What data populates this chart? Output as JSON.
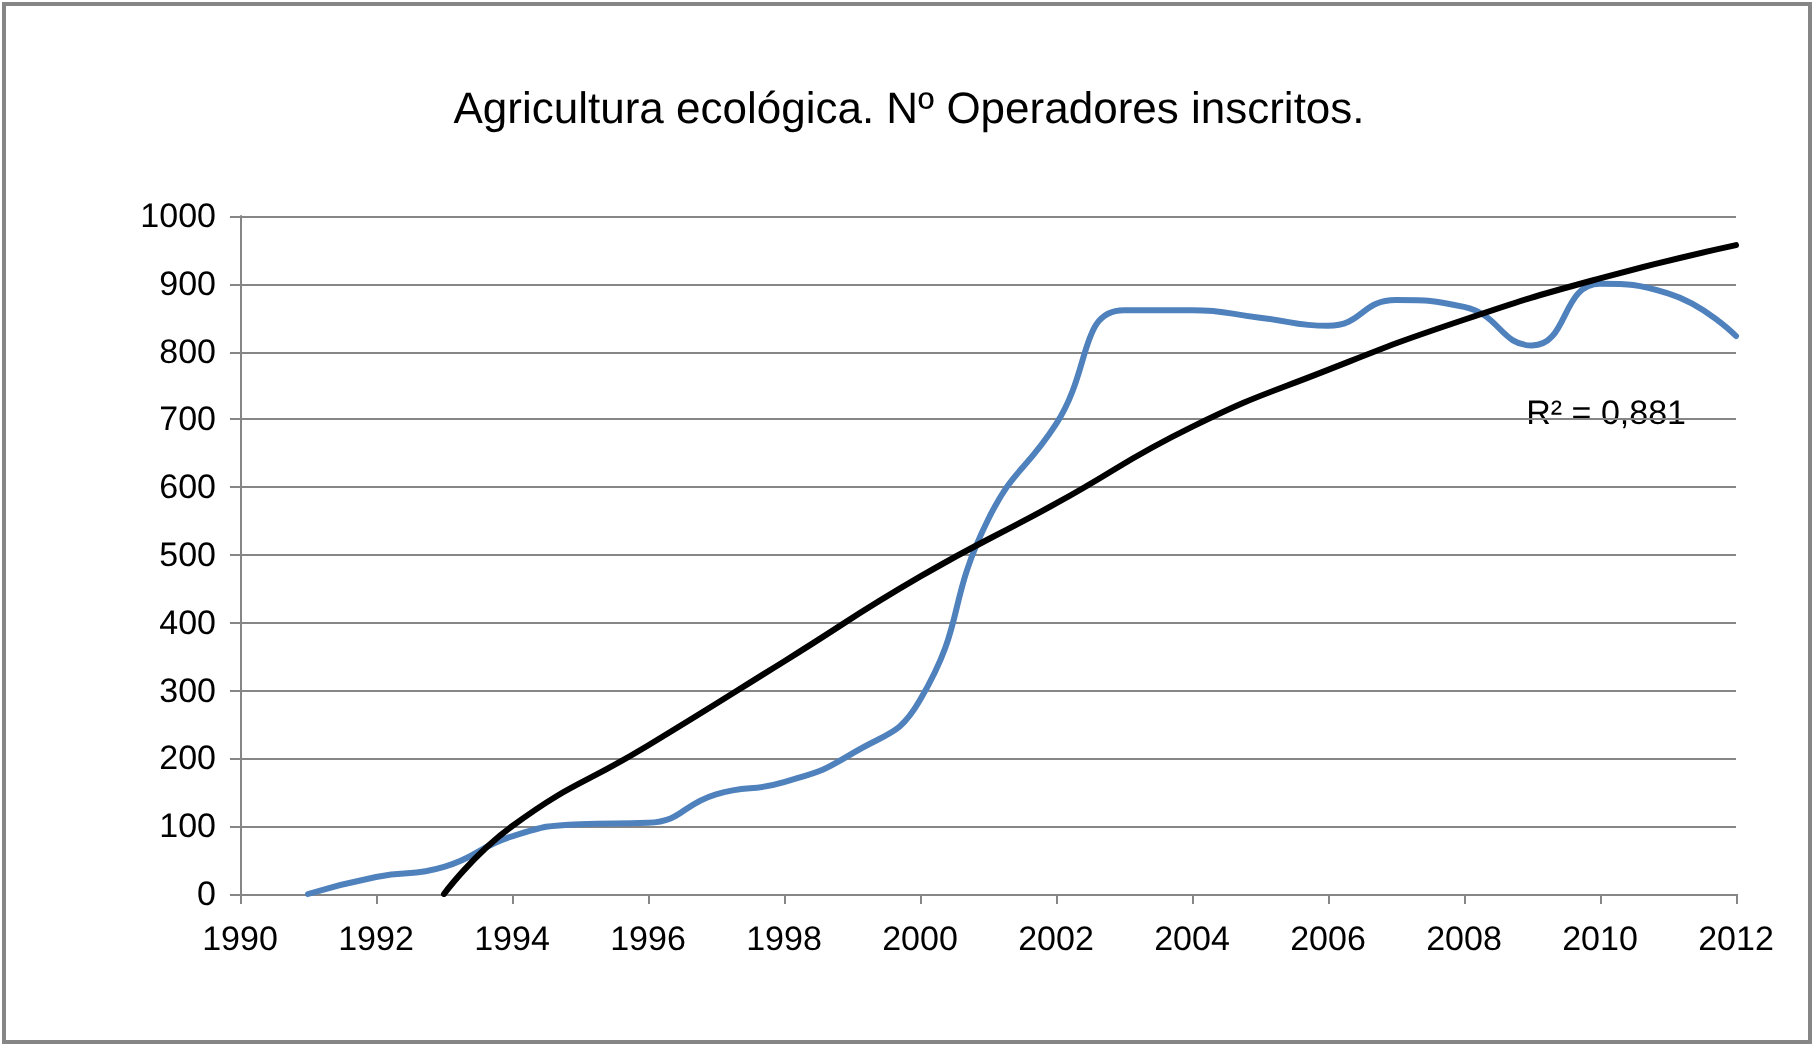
{
  "chart_data": {
    "type": "line",
    "title": "Agricultura ecológica. Nº Operadores inscritos.",
    "x": [
      1991,
      1992,
      1993,
      1994,
      1995,
      1996,
      1997,
      1998,
      1999,
      2000,
      2001,
      2002,
      2003,
      2004,
      2005,
      2006,
      2007,
      2008,
      2009,
      2010,
      2011,
      2012
    ],
    "series": [
      {
        "color": "#4f81bd",
        "values": [
          0,
          25,
          40,
          85,
          103,
          105,
          147,
          165,
          207,
          286,
          552,
          693,
          861,
          861,
          850,
          838,
          876,
          866,
          809,
          900,
          886,
          823
        ]
      },
      {
        "type": "line",
        "color": "#000000",
        "x": [
          1993,
          1994,
          1996,
          1998,
          2000,
          2002,
          2004,
          2006,
          2008,
          2010,
          2012
        ],
        "values": [
          0,
          100,
          219,
          343,
          468,
          576,
          689,
          773,
          847,
          908,
          957
        ]
      }
    ],
    "annotations": [
      "R² = 0,881"
    ],
    "xlim": [
      1990,
      2012
    ],
    "xticks": [
      1990,
      1992,
      1994,
      1996,
      1998,
      2000,
      2002,
      2004,
      2006,
      2008,
      2010,
      2012
    ],
    "ylim": [
      0,
      1000
    ],
    "yticks": [
      0,
      100,
      200,
      300,
      400,
      500,
      600,
      700,
      800,
      900,
      1000
    ],
    "grid": "y",
    "marker": "none",
    "line_style": "solid"
  }
}
